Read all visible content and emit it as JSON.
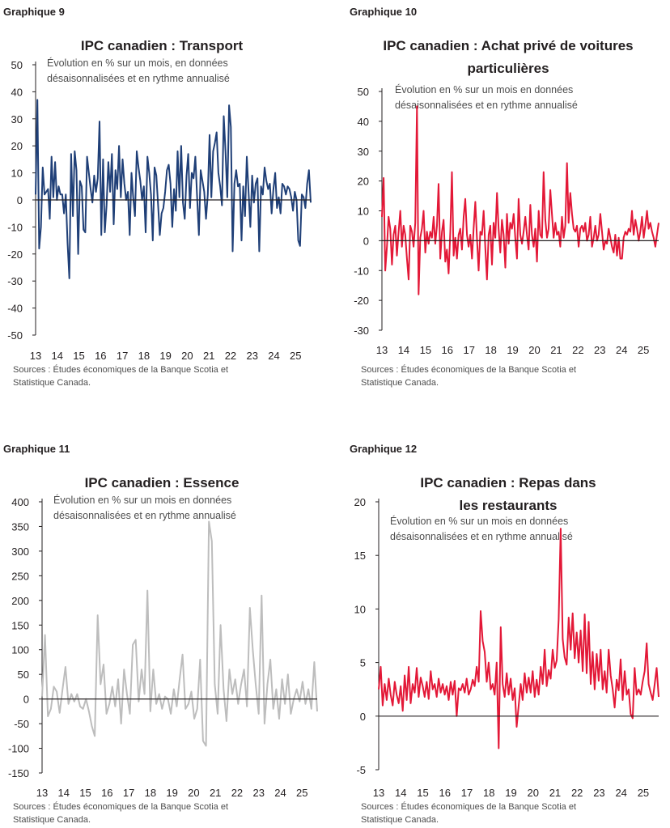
{
  "panels": [
    {
      "label": "Graphique 9",
      "chart_data": {
        "type": "line",
        "title_lines": [
          "IPC canadien : Transport"
        ],
        "subtitle_lines": [
          "Évolution en % sur un mois, en données",
          "désaisonnalisées et en rythme annualisé"
        ],
        "ylim": [
          -50,
          50
        ],
        "yticks": [
          50,
          40,
          30,
          20,
          10,
          0,
          -10,
          -20,
          -30,
          -40,
          -50
        ],
        "xticks": [
          "13",
          "14",
          "15",
          "16",
          "17",
          "18",
          "19",
          "20",
          "21",
          "22",
          "23",
          "24",
          "25"
        ],
        "x_start": 2013.0,
        "x_end": 2025.7,
        "color": "#1f3f77",
        "series": [
          {
            "values": [
              2,
              37,
              -18,
              -10,
              12,
              2,
              3,
              4,
              -7,
              16,
              1,
              14,
              0,
              5,
              2,
              2,
              -5,
              2,
              -16,
              -29,
              17,
              -6,
              18,
              11,
              -20,
              7,
              5,
              -11,
              -12,
              16,
              10,
              4,
              -1,
              9,
              3,
              8,
              29,
              -13,
              15,
              -12,
              -2,
              14,
              3,
              17,
              -9,
              11,
              4,
              20,
              1,
              15,
              6,
              0,
              3,
              -13,
              10,
              1,
              -6,
              18,
              12,
              7,
              0,
              5,
              -12,
              16,
              10,
              2,
              -15,
              12,
              9,
              -2,
              -13,
              -5,
              -3,
              3,
              11,
              13,
              6,
              -10,
              4,
              -4,
              18,
              1,
              20,
              -1,
              -7,
              9,
              17,
              -3,
              10,
              8,
              16,
              1,
              -13,
              11,
              7,
              3,
              -7,
              2,
              24,
              1,
              18,
              21,
              25,
              10,
              5,
              -2,
              31,
              18,
              1,
              35,
              27,
              -19,
              6,
              11,
              5,
              6,
              -15,
              5,
              -6,
              16,
              3,
              -10,
              9,
              -1,
              6,
              8,
              -19,
              5,
              2,
              12,
              7,
              4,
              6,
              -5,
              4,
              10,
              -3,
              1,
              -5,
              6,
              5,
              2,
              5,
              4,
              1,
              -4,
              3,
              0,
              -15,
              -17,
              2,
              1,
              -3,
              6,
              11,
              -1
            ]
          }
        ],
        "sources_lines": [
          "Sources : Études économiques de la Banque Scotia et",
          "Statistique Canada."
        ]
      }
    },
    {
      "label": "Graphique 10",
      "chart_data": {
        "type": "line",
        "title_lines": [
          "IPC canadien : Achat privé de voitures",
          "particulières"
        ],
        "subtitle_lines": [
          "Évolution en % sur un mois en données",
          "désaisonnalisées et en rythme annualisé"
        ],
        "ylim": [
          -30,
          50
        ],
        "yticks": [
          50,
          40,
          30,
          20,
          10,
          0,
          -10,
          -20,
          -30
        ],
        "xticks": [
          "13",
          "14",
          "15",
          "16",
          "17",
          "18",
          "19",
          "20",
          "21",
          "22",
          "23",
          "24",
          "25"
        ],
        "x_start": 2013.0,
        "x_end": 2025.7,
        "color": "#e31837",
        "series": [
          {
            "values": [
              8,
              21,
              -10,
              -2,
              8,
              4,
              -8,
              2,
              5,
              -5,
              3,
              10,
              -2,
              5,
              2,
              -6,
              -13,
              5,
              3,
              -2,
              6,
              45,
              -18,
              1,
              4,
              10,
              -4,
              3,
              -1,
              3,
              1,
              8,
              -1,
              5,
              19,
              -6,
              3,
              7,
              -7,
              -3,
              -11,
              3,
              23,
              -5,
              1,
              -6,
              2,
              4,
              -3,
              8,
              14,
              2,
              -2,
              2,
              -6,
              4,
              13,
              1,
              -10,
              3,
              2,
              10,
              -2,
              -13,
              2,
              5,
              -8,
              6,
              1,
              16,
              4,
              -4,
              7,
              2,
              -9,
              9,
              -1,
              6,
              4,
              9,
              1,
              -6,
              14,
              2,
              -1,
              3,
              8,
              2,
              -3,
              12,
              2,
              -2,
              4,
              -7,
              10,
              2,
              1,
              23,
              7,
              1,
              4,
              17,
              9,
              1,
              6,
              2,
              3,
              -2,
              8,
              1,
              5,
              26,
              6,
              16,
              9,
              4,
              3,
              5,
              -2,
              4,
              5,
              3,
              6,
              0,
              2,
              8,
              -2,
              1,
              5,
              0,
              2,
              9,
              3,
              -3,
              0,
              -1,
              4,
              1,
              -2,
              -4,
              2,
              -5,
              1,
              -6,
              -6,
              1,
              3,
              2,
              4,
              3,
              10,
              2,
              7,
              4,
              0,
              3,
              8,
              1,
              5,
              10,
              4,
              6,
              3,
              1,
              -2,
              2,
              6
            ]
          }
        ],
        "sources_lines": [
          "Sources : Études économiques de la Banque Scotia et",
          "Statistique Canada."
        ]
      }
    },
    {
      "label": "Graphique 11",
      "chart_data": {
        "type": "line",
        "title_lines": [
          "IPC canadien : Essence"
        ],
        "subtitle_lines": [
          "Évolution en % sur un mois en données",
          "désaisonnalisées et en rythme annualisé"
        ],
        "ylim": [
          -150,
          400
        ],
        "yticks": [
          400,
          350,
          300,
          250,
          200,
          150,
          100,
          50,
          0,
          -50,
          -100,
          -150
        ],
        "xticks": [
          "13",
          "14",
          "15",
          "16",
          "17",
          "18",
          "19",
          "20",
          "21",
          "22",
          "23",
          "24",
          "25"
        ],
        "x_start": 2013.0,
        "x_end": 2025.7,
        "color": "#bdbdbd",
        "series": [
          {
            "values": [
              5,
              130,
              -35,
              -20,
              25,
              15,
              -28,
              20,
              65,
              -10,
              10,
              -5,
              10,
              -15,
              -20,
              0,
              -25,
              -55,
              -75,
              170,
              30,
              70,
              -30,
              -10,
              25,
              -15,
              40,
              -50,
              60,
              10,
              -30,
              110,
              120,
              -5,
              60,
              10,
              220,
              -25,
              60,
              -10,
              10,
              -20,
              5,
              0,
              -30,
              20,
              -15,
              40,
              90,
              -20,
              -10,
              15,
              -40,
              -20,
              80,
              -85,
              -95,
              360,
              320,
              30,
              -30,
              150,
              20,
              -45,
              60,
              10,
              40,
              -10,
              30,
              60,
              -15,
              185,
              100,
              30,
              -30,
              210,
              -50,
              30,
              80,
              -20,
              20,
              -40,
              40,
              -10,
              50,
              -30,
              0,
              20,
              -5,
              35,
              -10,
              20,
              -20,
              75,
              -25
            ]
          }
        ],
        "sources_lines": [
          "Sources : Études économiques de la Banque Scotia et",
          "Statistique Canada."
        ]
      }
    },
    {
      "label": "Graphique 12",
      "chart_data": {
        "type": "line",
        "title_lines": [
          "IPC canadien : Repas dans",
          "les restaurants"
        ],
        "subtitle_lines": [
          "Évolution en % sur un mois en données",
          "désaisonnalisées et en rythme annualisé"
        ],
        "ylim": [
          -5,
          20
        ],
        "yticks": [
          20,
          15,
          10,
          5,
          0,
          -5
        ],
        "xticks": [
          "13",
          "14",
          "15",
          "16",
          "17",
          "18",
          "19",
          "20",
          "21",
          "22",
          "23",
          "24",
          "25"
        ],
        "x_start": 2013.0,
        "x_end": 2025.7,
        "color": "#e31837",
        "series": [
          {
            "values": [
              2.5,
              4.6,
              1.0,
              3.0,
              1.5,
              3.5,
              2.0,
              1.0,
              3.2,
              2.0,
              1.2,
              2.8,
              0.5,
              3.8,
              1.5,
              4.6,
              1.2,
              3.0,
              2.2,
              4.5,
              1.8,
              3.6,
              2.8,
              1.8,
              3.2,
              1.6,
              4.2,
              2.5,
              3.0,
              1.8,
              3.5,
              2.2,
              3.0,
              2.0,
              2.8,
              1.5,
              3.2,
              2.0,
              3.3,
              0.0,
              2.6,
              2.4,
              3.0,
              2.2,
              3.5,
              2.0,
              2.5,
              3.4,
              2.8,
              4.6,
              3.2,
              9.8,
              7.0,
              6.0,
              3.2,
              5.0,
              2.5,
              3.0,
              2.0,
              5.0,
              -3.0,
              8.3,
              3.0,
              1.8,
              4.0,
              2.0,
              3.5,
              1.5,
              2.6,
              -1.0,
              1.0,
              3.0,
              1.5,
              4.0,
              2.2,
              3.6,
              2.2,
              4.2,
              1.8,
              3.4,
              2.0,
              4.6,
              3.0,
              6.2,
              2.8,
              4.3,
              3.5,
              6.2,
              4.5,
              5.2,
              9.0,
              17.5,
              7.2,
              5.5,
              4.8,
              9.2,
              6.2,
              9.6,
              5.4,
              7.8,
              5.0,
              8.0,
              4.2,
              9.5,
              4.0,
              8.8,
              3.0,
              6.0,
              2.5,
              5.8,
              3.3,
              6.2,
              2.5,
              4.2,
              2.2,
              6.2,
              3.8,
              2.5,
              0.8,
              3.4,
              2.4,
              5.3,
              1.5,
              4.2,
              2.0,
              2.5,
              0.2,
              -0.2,
              4.5,
              2.0,
              2.5,
              2.0,
              3.2,
              4.2,
              6.8,
              3.0,
              2.2,
              1.5,
              3.0,
              4.5,
              1.8
            ]
          }
        ],
        "sources_lines": [
          "Sources : Études économiques de la Banque Scotia et",
          "Statistique Canada."
        ]
      }
    }
  ]
}
